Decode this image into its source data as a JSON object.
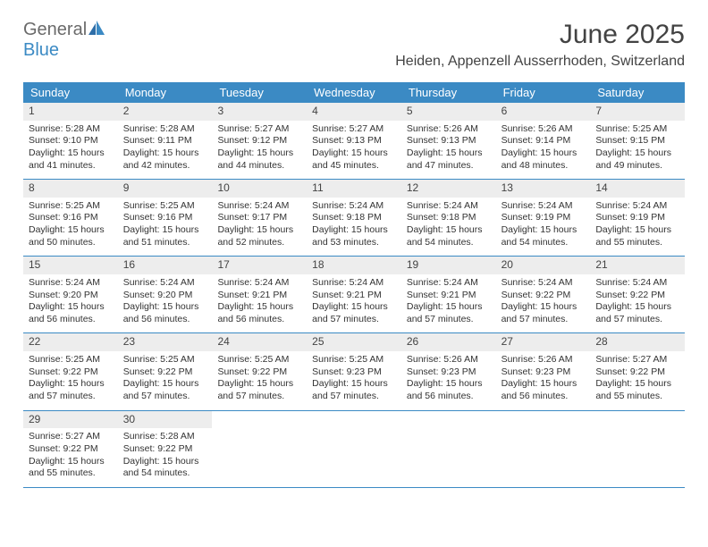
{
  "colors": {
    "header_bg": "#3b8ac4",
    "header_text": "#ffffff",
    "day_band_bg": "#ededed",
    "text": "#333333",
    "title": "#434343",
    "rule": "#3b8ac4"
  },
  "logo": {
    "line1": "General",
    "line2": "Blue"
  },
  "title": "June 2025",
  "location": "Heiden, Appenzell Ausserrhoden, Switzerland",
  "weekdays": [
    "Sunday",
    "Monday",
    "Tuesday",
    "Wednesday",
    "Thursday",
    "Friday",
    "Saturday"
  ],
  "labels": {
    "sunrise": "Sunrise:",
    "sunset": "Sunset:",
    "daylight": "Daylight:"
  },
  "days": [
    {
      "n": 1,
      "sunrise": "5:28 AM",
      "sunset": "9:10 PM",
      "dh": 15,
      "dm": 41
    },
    {
      "n": 2,
      "sunrise": "5:28 AM",
      "sunset": "9:11 PM",
      "dh": 15,
      "dm": 42
    },
    {
      "n": 3,
      "sunrise": "5:27 AM",
      "sunset": "9:12 PM",
      "dh": 15,
      "dm": 44
    },
    {
      "n": 4,
      "sunrise": "5:27 AM",
      "sunset": "9:13 PM",
      "dh": 15,
      "dm": 45
    },
    {
      "n": 5,
      "sunrise": "5:26 AM",
      "sunset": "9:13 PM",
      "dh": 15,
      "dm": 47
    },
    {
      "n": 6,
      "sunrise": "5:26 AM",
      "sunset": "9:14 PM",
      "dh": 15,
      "dm": 48
    },
    {
      "n": 7,
      "sunrise": "5:25 AM",
      "sunset": "9:15 PM",
      "dh": 15,
      "dm": 49
    },
    {
      "n": 8,
      "sunrise": "5:25 AM",
      "sunset": "9:16 PM",
      "dh": 15,
      "dm": 50
    },
    {
      "n": 9,
      "sunrise": "5:25 AM",
      "sunset": "9:16 PM",
      "dh": 15,
      "dm": 51
    },
    {
      "n": 10,
      "sunrise": "5:24 AM",
      "sunset": "9:17 PM",
      "dh": 15,
      "dm": 52
    },
    {
      "n": 11,
      "sunrise": "5:24 AM",
      "sunset": "9:18 PM",
      "dh": 15,
      "dm": 53
    },
    {
      "n": 12,
      "sunrise": "5:24 AM",
      "sunset": "9:18 PM",
      "dh": 15,
      "dm": 54
    },
    {
      "n": 13,
      "sunrise": "5:24 AM",
      "sunset": "9:19 PM",
      "dh": 15,
      "dm": 54
    },
    {
      "n": 14,
      "sunrise": "5:24 AM",
      "sunset": "9:19 PM",
      "dh": 15,
      "dm": 55
    },
    {
      "n": 15,
      "sunrise": "5:24 AM",
      "sunset": "9:20 PM",
      "dh": 15,
      "dm": 56
    },
    {
      "n": 16,
      "sunrise": "5:24 AM",
      "sunset": "9:20 PM",
      "dh": 15,
      "dm": 56
    },
    {
      "n": 17,
      "sunrise": "5:24 AM",
      "sunset": "9:21 PM",
      "dh": 15,
      "dm": 56
    },
    {
      "n": 18,
      "sunrise": "5:24 AM",
      "sunset": "9:21 PM",
      "dh": 15,
      "dm": 57
    },
    {
      "n": 19,
      "sunrise": "5:24 AM",
      "sunset": "9:21 PM",
      "dh": 15,
      "dm": 57
    },
    {
      "n": 20,
      "sunrise": "5:24 AM",
      "sunset": "9:22 PM",
      "dh": 15,
      "dm": 57
    },
    {
      "n": 21,
      "sunrise": "5:24 AM",
      "sunset": "9:22 PM",
      "dh": 15,
      "dm": 57
    },
    {
      "n": 22,
      "sunrise": "5:25 AM",
      "sunset": "9:22 PM",
      "dh": 15,
      "dm": 57
    },
    {
      "n": 23,
      "sunrise": "5:25 AM",
      "sunset": "9:22 PM",
      "dh": 15,
      "dm": 57
    },
    {
      "n": 24,
      "sunrise": "5:25 AM",
      "sunset": "9:22 PM",
      "dh": 15,
      "dm": 57
    },
    {
      "n": 25,
      "sunrise": "5:25 AM",
      "sunset": "9:23 PM",
      "dh": 15,
      "dm": 57
    },
    {
      "n": 26,
      "sunrise": "5:26 AM",
      "sunset": "9:23 PM",
      "dh": 15,
      "dm": 56
    },
    {
      "n": 27,
      "sunrise": "5:26 AM",
      "sunset": "9:23 PM",
      "dh": 15,
      "dm": 56
    },
    {
      "n": 28,
      "sunrise": "5:27 AM",
      "sunset": "9:22 PM",
      "dh": 15,
      "dm": 55
    },
    {
      "n": 29,
      "sunrise": "5:27 AM",
      "sunset": "9:22 PM",
      "dh": 15,
      "dm": 55
    },
    {
      "n": 30,
      "sunrise": "5:28 AM",
      "sunset": "9:22 PM",
      "dh": 15,
      "dm": 54
    }
  ],
  "trailing_blanks": 5
}
